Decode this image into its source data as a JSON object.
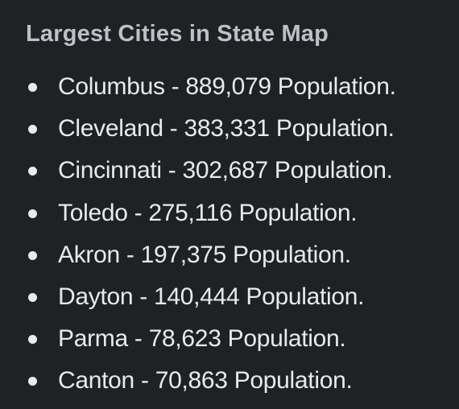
{
  "heading": "Largest Cities in State Map",
  "items": [
    "Columbus - 889,079 Population.",
    "Cleveland - 383,331 Population.",
    "Cincinnati - 302,687 Population.",
    "Toledo - 275,116 Population.",
    "Akron - 197,375 Population.",
    "Dayton - 140,444 Population.",
    "Parma - 78,623 Population.",
    "Canton - 70,863 Population."
  ]
}
